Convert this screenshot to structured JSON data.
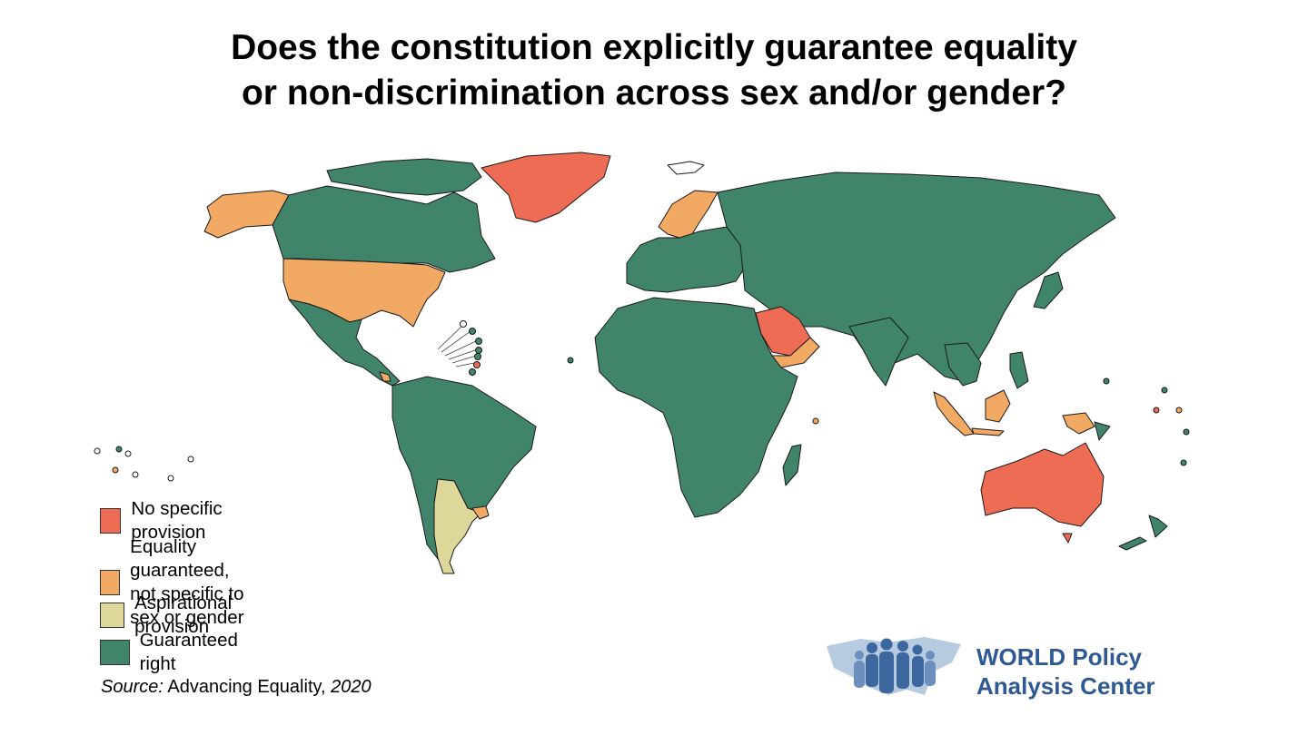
{
  "title": {
    "line1": "Does the constitution explicitly guarantee equality",
    "line2": "or non-discrimination across sex and/or gender?"
  },
  "legend": [
    {
      "key": "no_provision",
      "label": "No specific provision",
      "color": "#ee6b54"
    },
    {
      "key": "equality_not_specific",
      "label": "Equality guaranteed,\nnot specific to sex or gender",
      "color": "#f1a964"
    },
    {
      "key": "aspirational",
      "label": "Aspirational provision",
      "color": "#ded79a"
    },
    {
      "key": "guaranteed",
      "label": "Guaranteed right",
      "color": "#40846a"
    }
  ],
  "source": {
    "prefix": "Source:",
    "text": " Advancing Equality,",
    "year": " 2020"
  },
  "logo": {
    "line1": "WORLD Policy",
    "line2": "Analysis Center",
    "color": "#2e5a94"
  },
  "map": {
    "border_color": "#1a1a1a",
    "regions": [
      {
        "name": "Alaska",
        "category": "equality_not_specific"
      },
      {
        "name": "Canada",
        "category": "guaranteed"
      },
      {
        "name": "Greenland",
        "category": "no_provision"
      },
      {
        "name": "United States",
        "category": "equality_not_specific"
      },
      {
        "name": "Mexico and Central America",
        "category": "guaranteed"
      },
      {
        "name": "South America",
        "category": "guaranteed"
      },
      {
        "name": "Argentina",
        "category": "aspirational"
      },
      {
        "name": "Uruguay",
        "category": "equality_not_specific"
      },
      {
        "name": "Scandinavia",
        "category": "equality_not_specific"
      },
      {
        "name": "Europe",
        "category": "guaranteed"
      },
      {
        "name": "Russia and Asia",
        "category": "guaranteed"
      },
      {
        "name": "Saudi Arabia",
        "category": "no_provision"
      },
      {
        "name": "Yemen/Oman",
        "category": "equality_not_specific"
      },
      {
        "name": "Africa",
        "category": "guaranteed"
      },
      {
        "name": "Madagascar",
        "category": "guaranteed"
      },
      {
        "name": "India",
        "category": "guaranteed"
      },
      {
        "name": "Southeast Asia",
        "category": "guaranteed"
      },
      {
        "name": "Indonesia",
        "category": "equality_not_specific"
      },
      {
        "name": "Australia",
        "category": "no_provision"
      },
      {
        "name": "New Zealand",
        "category": "guaranteed"
      }
    ]
  }
}
